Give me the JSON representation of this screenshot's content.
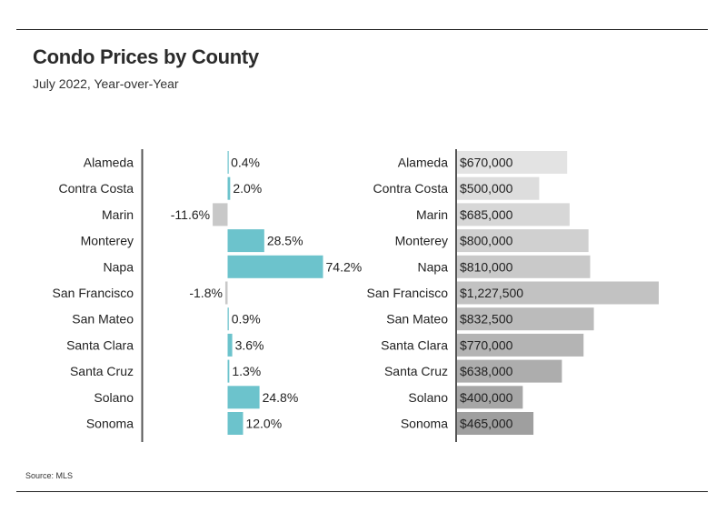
{
  "title": "Condo Prices by County",
  "subtitle": "July 2022, Year-over-Year",
  "source": "Source: MLS",
  "chart_data": [
    {
      "type": "bar",
      "orientation": "horizontal",
      "categories": [
        "Alameda",
        "Contra Costa",
        "Marin",
        "Monterey",
        "Napa",
        "San Francisco",
        "San Mateo",
        "Santa Clara",
        "Santa Cruz",
        "Solano",
        "Sonoma"
      ],
      "values": [
        0.4,
        2.0,
        -11.6,
        28.5,
        74.2,
        -1.8,
        0.9,
        3.6,
        1.3,
        24.8,
        12.0
      ],
      "labels": [
        "0.4%",
        "2.0%",
        "-11.6%",
        "28.5%",
        "74.2%",
        "-1.8%",
        "0.9%",
        "3.6%",
        "1.3%",
        "24.8%",
        "12.0%"
      ],
      "positive_color": "#6cc3cc",
      "negative_color": "#c8c8c8",
      "grid": false
    },
    {
      "type": "bar",
      "orientation": "horizontal",
      "categories": [
        "Alameda",
        "Contra Costa",
        "Marin",
        "Monterey",
        "Napa",
        "San Francisco",
        "San Mateo",
        "Santa Clara",
        "Santa Cruz",
        "Solano",
        "Sonoma"
      ],
      "values": [
        670000,
        500000,
        685000,
        800000,
        810000,
        1227500,
        832500,
        770000,
        638000,
        400000,
        465000
      ],
      "labels": [
        "$670,000",
        "$500,000",
        "$685,000",
        "$800,000",
        "$810,000",
        "$1,227,500",
        "$832,500",
        "$770,000",
        "$638,000",
        "$400,000",
        "$465,000"
      ],
      "colors": [
        "#e3e3e3",
        "#dddddd",
        "#d7d7d7",
        "#d0d0d0",
        "#c9c9c9",
        "#c2c2c2",
        "#bbbbbb",
        "#b4b4b4",
        "#adadad",
        "#a6a6a6",
        "#9f9f9f"
      ],
      "grid": false
    }
  ]
}
